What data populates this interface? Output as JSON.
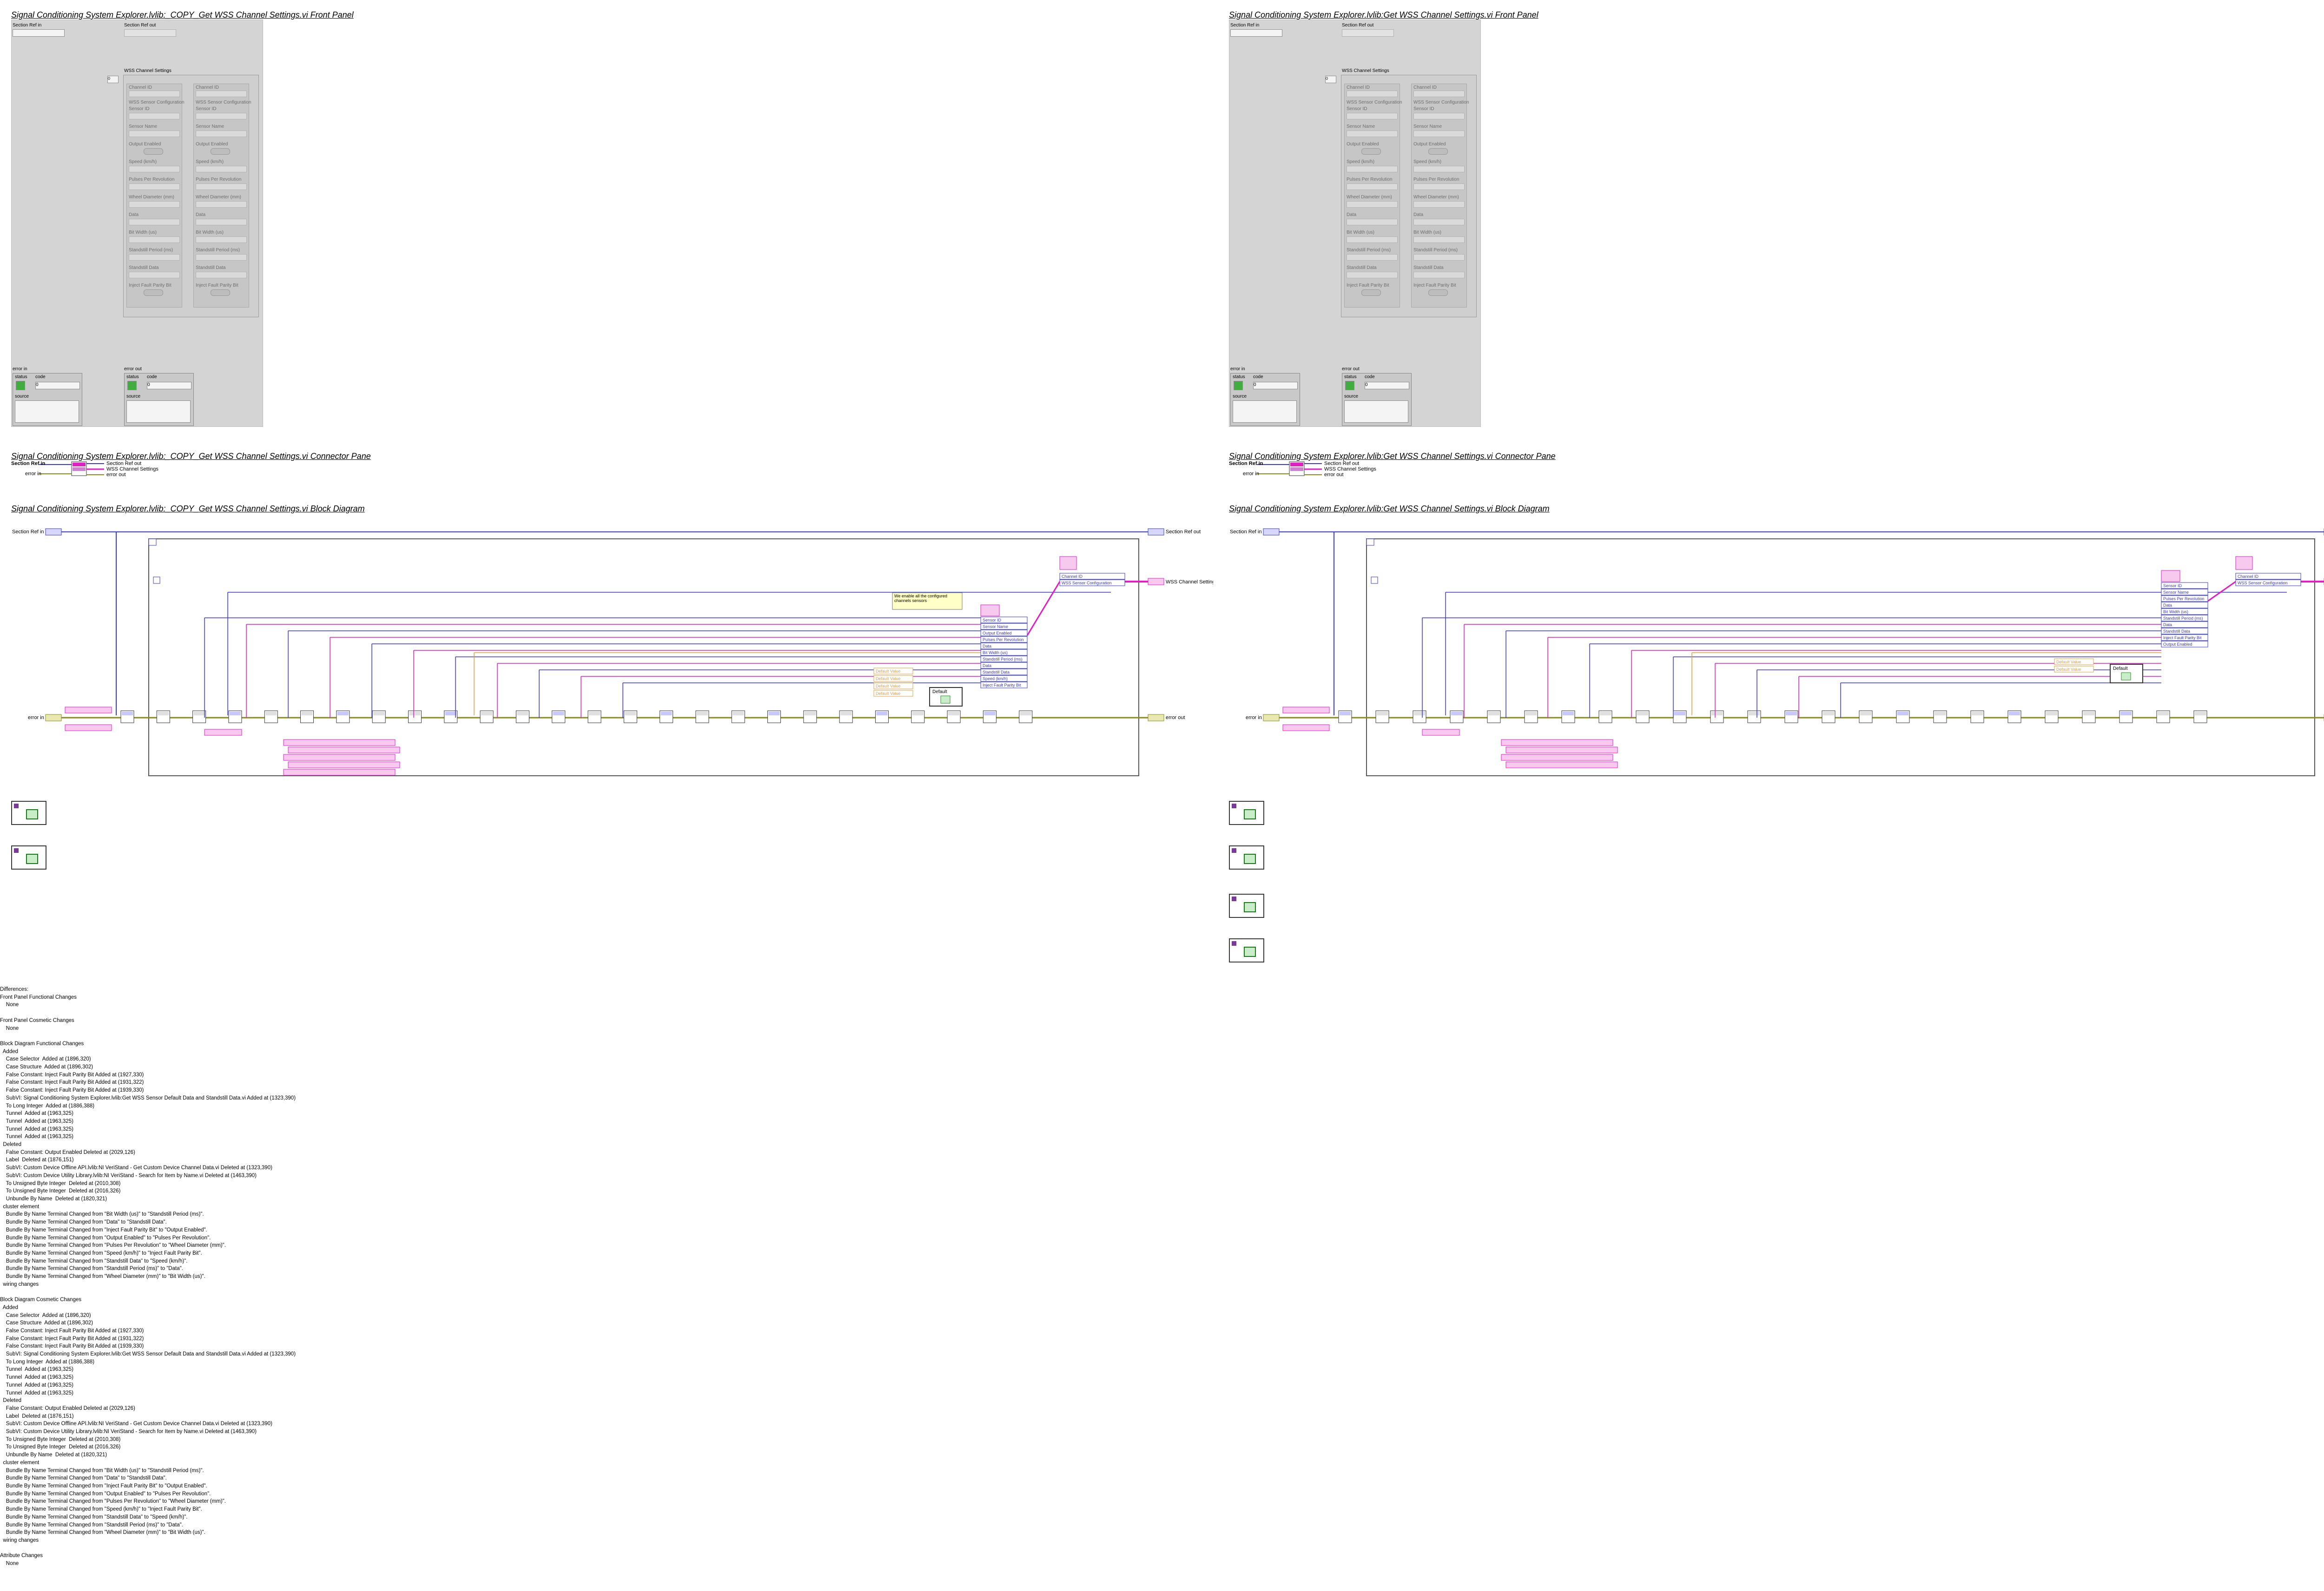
{
  "left": {
    "fp_title": "Signal Conditioning System Explorer.lvlib:_COPY_Get WSS Channel Settings.vi Front Panel",
    "cp_title": "Signal Conditioning System Explorer.lvlib:_COPY_Get WSS Channel Settings.vi Connector Pane",
    "bd_title": "Signal Conditioning System Explorer.lvlib:_COPY_Get WSS Channel Settings.vi Block Diagram"
  },
  "right": {
    "fp_title": "Signal Conditioning System Explorer.lvlib:Get WSS Channel Settings.vi Front Panel",
    "cp_title": "Signal Conditioning System Explorer.lvlib:Get WSS Channel Settings.vi Connector Pane",
    "bd_title": "Signal Conditioning System Explorer.lvlib:Get WSS Channel Settings.vi Block Diagram"
  },
  "front_panel": {
    "section_ref_in": "Section Ref in",
    "section_ref_out": "Section Ref out",
    "cluster_label": "WSS Channel Settings",
    "index_value": "0",
    "col_header_channel": "Channel ID",
    "col_header_config": "WSS Sensor Configuration",
    "fields": [
      "Sensor ID",
      "Sensor Name",
      "Output Enabled",
      "Speed (km/h)",
      "Pulses Per Revolution",
      "Wheel Diameter (mm)",
      "Data",
      "Bit Width (us)",
      "Standstill Period (ms)",
      "Standstill Data",
      "Inject Fault Parity Bit"
    ],
    "error_in": "error in",
    "error_out": "error out",
    "status": "status",
    "code": "code",
    "source": "source",
    "code_value": "0"
  },
  "connector_pane": {
    "left_terminals": [
      "Section Ref in",
      "error in"
    ],
    "right_terminals": [
      "Section Ref out",
      "WSS Channel Settings",
      "error out"
    ]
  },
  "block_diagram": {
    "section_ref_in": "Section Ref in",
    "section_ref_out": "Section Ref out",
    "error_in": "error in",
    "error_out": "error out",
    "wss_channel_settings": "WSS Channel Settings",
    "comment": "We enable all the configured channels sensors",
    "bundle_top": [
      "Channel ID",
      "WSS Sensor Configuration"
    ],
    "bundle_left": [
      "Sensor ID",
      "Sensor Name",
      "Output Enabled",
      "Pulses Per Revolution",
      "Data",
      "Bit Width (us)",
      "Standstill Period (ms)",
      "Data",
      "Standstill Data",
      "Speed (km/h)",
      "Inject Fault Parity Bit"
    ],
    "bundle_right": [
      "Sensor ID",
      "Sensor Name",
      "Pulses Per Revolution",
      "Data",
      "Bit Width (us)",
      "Standstill Period (ms)",
      "Data",
      "Standstill Data",
      "Inject Fault Parity Bit",
      "Output Enabled"
    ],
    "default_value": "Default Value",
    "default_case": "Default"
  },
  "differences": [
    "Differences:",
    "Front Panel Functional Changes",
    "    None",
    "",
    "Front Panel Cosmetic Changes",
    "    None",
    "",
    "Block Diagram Functional Changes",
    "  Added",
    "    Case Selector  Added at (1896,320)",
    "    Case Structure  Added at (1896,302)",
    "    False Constant: Inject Fault Parity Bit Added at (1927,330)",
    "    False Constant: Inject Fault Parity Bit Added at (1931,322)",
    "    False Constant: Inject Fault Parity Bit Added at (1939,330)",
    "    SubVI: Signal Conditioning System Explorer.lvlib:Get WSS Sensor Default Data and Standstill Data.vi Added at (1323,390)",
    "    To Long Integer  Added at (1886,388)",
    "    Tunnel  Added at (1963,325)",
    "    Tunnel  Added at (1963,325)",
    "    Tunnel  Added at (1963,325)",
    "    Tunnel  Added at (1963,325)",
    "  Deleted",
    "    False Constant: Output Enabled Deleted at (2029,126)",
    "    Label  Deleted at (1876,151)",
    "    SubVI: Custom Device Offline API.lvlib:NI VeriStand - Get Custom Device Channel Data.vi Deleted at (1323,390)",
    "    SubVI: Custom Device Utility Library.lvlib:NI VeriStand - Search for Item by Name.vi Deleted at (1463,390)",
    "    To Unsigned Byte Integer  Deleted at (2010,308)",
    "    To Unsigned Byte Integer  Deleted at (2016,326)",
    "    Unbundle By Name  Deleted at (1820,321)",
    "  cluster element",
    "    Bundle By Name Terminal Changed from \"Bit Width (us)\" to \"Standstill Period (ms)\".",
    "    Bundle By Name Terminal Changed from \"Data\" to \"Standstill Data\".",
    "    Bundle By Name Terminal Changed from \"Inject Fault Parity Bit\" to \"Output Enabled\".",
    "    Bundle By Name Terminal Changed from \"Output Enabled\" to \"Pulses Per Revolution\".",
    "    Bundle By Name Terminal Changed from \"Pulses Per Revolution\" to \"Wheel Diameter (mm)\".",
    "    Bundle By Name Terminal Changed from \"Speed (km/h)\" to \"Inject Fault Parity Bit\".",
    "    Bundle By Name Terminal Changed from \"Standstill Data\" to \"Speed (km/h)\".",
    "    Bundle By Name Terminal Changed from \"Standstill Period (ms)\" to \"Data\".",
    "    Bundle By Name Terminal Changed from \"Wheel Diameter (mm)\" to \"Bit Width (us)\".",
    "  wiring changes",
    "",
    "Block Diagram Cosmetic Changes",
    "  Added",
    "    Case Selector  Added at (1896,320)",
    "    Case Structure  Added at (1896,302)",
    "    False Constant: Inject Fault Parity Bit Added at (1927,330)",
    "    False Constant: Inject Fault Parity Bit Added at (1931,322)",
    "    False Constant: Inject Fault Parity Bit Added at (1939,330)",
    "    SubVI: Signal Conditioning System Explorer.lvlib:Get WSS Sensor Default Data and Standstill Data.vi Added at (1323,390)",
    "    To Long Integer  Added at (1886,388)",
    "    Tunnel  Added at (1963,325)",
    "    Tunnel  Added at (1963,325)",
    "    Tunnel  Added at (1963,325)",
    "    Tunnel  Added at (1963,325)",
    "  Deleted",
    "    False Constant: Output Enabled Deleted at (2029,126)",
    "    Label  Deleted at (1876,151)",
    "    SubVI: Custom Device Offline API.lvlib:NI VeriStand - Get Custom Device Channel Data.vi Deleted at (1323,390)",
    "    SubVI: Custom Device Utility Library.lvlib:NI VeriStand - Search for Item by Name.vi Deleted at (1463,390)",
    "    To Unsigned Byte Integer  Deleted at (2010,308)",
    "    To Unsigned Byte Integer  Deleted at (2016,326)",
    "    Unbundle By Name  Deleted at (1820,321)",
    "  cluster element",
    "    Bundle By Name Terminal Changed from \"Bit Width (us)\" to \"Standstill Period (ms)\".",
    "    Bundle By Name Terminal Changed from \"Data\" to \"Standstill Data\".",
    "    Bundle By Name Terminal Changed from \"Inject Fault Parity Bit\" to \"Output Enabled\".",
    "    Bundle By Name Terminal Changed from \"Output Enabled\" to \"Pulses Per Revolution\".",
    "    Bundle By Name Terminal Changed from \"Pulses Per Revolution\" to \"Wheel Diameter (mm)\".",
    "    Bundle By Name Terminal Changed from \"Speed (km/h)\" to \"Inject Fault Parity Bit\".",
    "    Bundle By Name Terminal Changed from \"Standstill Data\" to \"Speed (km/h)\".",
    "    Bundle By Name Terminal Changed from \"Standstill Period (ms)\" to \"Data\".",
    "    Bundle By Name Terminal Changed from \"Wheel Diameter (mm)\" to \"Bit Width (us)\".",
    "  wiring changes",
    "",
    "Attribute Changes",
    "    None"
  ],
  "colors": {
    "wire_blue": "#3a3ad8",
    "wire_pink": "#e020c0",
    "wire_olive": "#8a8a20",
    "wire_orange": "#e0a040",
    "wire_green": "#2a8a2a",
    "panel_gray": "#d4d4d4"
  }
}
